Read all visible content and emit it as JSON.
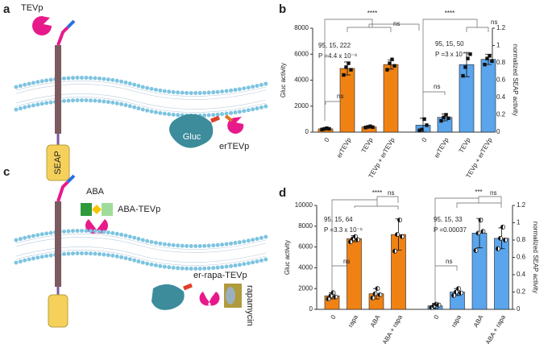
{
  "panel_labels": [
    "a",
    "b",
    "c",
    "d"
  ],
  "diagram_a": {
    "protease": "TEVp",
    "reporter": "SEAP",
    "luciferase": "Gluc",
    "er_protease": "erTEVp"
  },
  "diagram_c": {
    "ligand": "ABA",
    "fusion": "ABA-TEVp",
    "er_protease": "er-rapa-TEVp",
    "drug": "rapamycin"
  },
  "chart_data": [
    {
      "type": "bar",
      "ylabel": "Gluc activity",
      "y2label": "normalized SEAP activity",
      "categories": [
        "0",
        "erTEVp",
        "TEVp",
        "TEVp + erTEVp",
        "0",
        "erTEVp",
        "TEVp",
        "TEVp + erTEVp"
      ],
      "ylim": [
        0,
        8000
      ],
      "yticks": [
        0,
        2000,
        4000,
        6000,
        8000
      ],
      "y2lim": [
        0,
        1.2
      ],
      "y2ticks": [
        0,
        0.2,
        0.4,
        0.6,
        0.8,
        1.0,
        1.2
      ],
      "marker": "square",
      "series": [
        {
          "color": "#f08214",
          "values": [
            250,
            4900,
            400,
            5200,
            null,
            null,
            null,
            null
          ],
          "errors": [
            80,
            500,
            80,
            350,
            null,
            null,
            null,
            null
          ],
          "points": [
            [
              200,
              250,
              300,
              250
            ],
            [
              4400,
              5000,
              5300,
              4800
            ],
            [
              350,
              400,
              450,
              380
            ],
            [
              4800,
              5300,
              5600,
              5100
            ],
            null,
            null,
            null,
            null
          ]
        },
        {
          "color": "#5aa5ec",
          "axis": "y2",
          "values": [
            null,
            null,
            null,
            null,
            0.08,
            0.17,
            0.78,
            0.84
          ],
          "errors": [
            null,
            null,
            null,
            null,
            0.08,
            0.04,
            0.14,
            0.06
          ],
          "points": [
            null,
            null,
            null,
            null,
            [
              0.02,
              0.03,
              0.15,
              0.08
            ],
            [
              0.13,
              0.17,
              0.2,
              0.16
            ],
            [
              0.65,
              0.75,
              0.85,
              0.9
            ],
            [
              0.78,
              0.85,
              0.88,
              0.82
            ]
          ]
        }
      ],
      "annotations": [
        "****",
        "ns",
        "95, 15, 222",
        "P =4.4 x 10⁻⁹",
        "ns",
        "****",
        "ns",
        "95, 15, 50",
        "P =3 x 10⁻⁵",
        "ns"
      ]
    },
    {
      "type": "bar",
      "ylabel": "Gluc activity",
      "y2label": "normalized SEAP activity",
      "categories": [
        "0",
        "rapa",
        "ABA",
        "ABA + rapa",
        "0",
        "rapa",
        "ABA",
        "ABA + rapa"
      ],
      "ylim": [
        0,
        10000
      ],
      "yticks": [
        0,
        2000,
        4000,
        6000,
        8000,
        10000
      ],
      "y2lim": [
        0,
        1.2
      ],
      "y2ticks": [
        0,
        0.2,
        0.4,
        0.6,
        0.8,
        1.0,
        1.2
      ],
      "marker": "circle",
      "series": [
        {
          "color": "#f08214",
          "values": [
            1300,
            6800,
            1500,
            7200,
            null,
            null,
            null,
            null
          ],
          "errors": [
            300,
            300,
            500,
            1500,
            null,
            null,
            null,
            null
          ],
          "points": [
            [
              1000,
              1300,
              1600,
              1200
            ],
            [
              6500,
              6800,
              7000,
              6700
            ],
            [
              1100,
              1500,
              2000,
              1400
            ],
            [
              5600,
              7200,
              8600,
              7000
            ],
            null,
            null,
            null,
            null
          ]
        },
        {
          "color": "#5aa5ec",
          "axis": "y2",
          "values": [
            null,
            null,
            null,
            null,
            0.04,
            0.2,
            0.88,
            0.82
          ],
          "errors": [
            null,
            null,
            null,
            null,
            0.03,
            0.04,
            0.17,
            0.12
          ],
          "points": [
            null,
            null,
            null,
            null,
            [
              0.02,
              0.04,
              0.06,
              0.05
            ],
            [
              0.16,
              0.2,
              0.24,
              0.19
            ],
            [
              0.68,
              0.88,
              1.03,
              0.9
            ],
            [
              0.7,
              0.82,
              0.95,
              0.8
            ]
          ]
        }
      ],
      "annotations": [
        "****",
        "ns",
        "95, 15, 64",
        "P =3.3 x 10⁻⁶",
        "ns",
        "***",
        "ns",
        "95, 15, 33",
        "P =0.00037",
        "ns"
      ]
    }
  ]
}
